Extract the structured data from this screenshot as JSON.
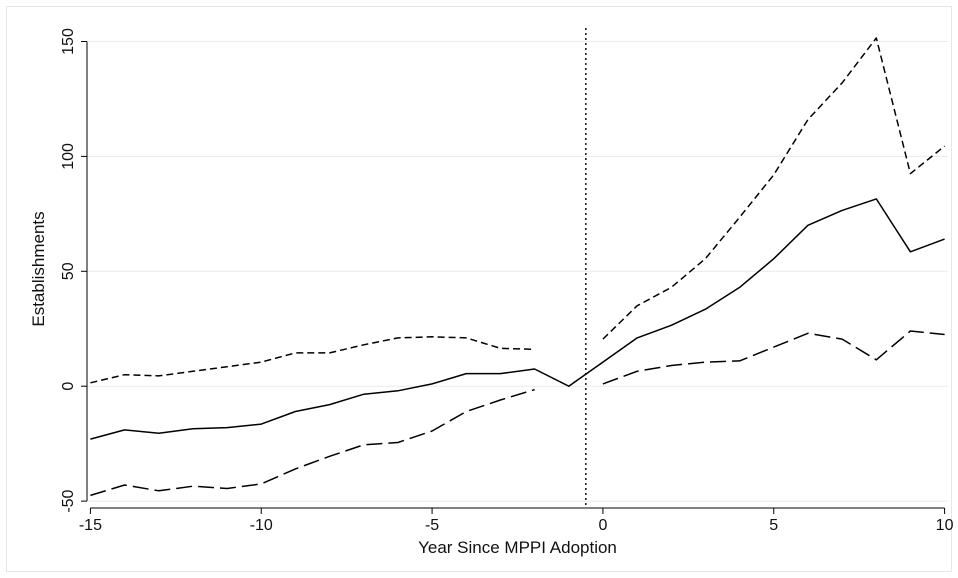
{
  "chart_data": {
    "type": "line",
    "title": "",
    "xlabel": "Year Since MPPI Adoption",
    "ylabel": "Establishments",
    "xlim": [
      -15.1,
      10.1
    ],
    "ylim": [
      -53,
      155
    ],
    "xticks": [
      -15,
      -10,
      -5,
      0,
      5,
      10
    ],
    "xtick_labels": [
      "-15",
      "-10",
      "-5",
      "0",
      "5",
      "10"
    ],
    "yticks": [
      -50,
      0,
      50,
      100,
      150
    ],
    "ytick_labels": [
      "-50",
      "0",
      "50",
      "100",
      "150"
    ],
    "grid": "horizontal",
    "legend": "none",
    "reference_line": {
      "x": -0.5,
      "style": "dotted"
    },
    "series": [
      {
        "style": "solid",
        "color": "#000000",
        "x": [
          -15,
          -14,
          -13,
          -12,
          -11,
          -10,
          -9,
          -8,
          -7,
          -6,
          -5,
          -4,
          -3,
          -2,
          -1,
          0,
          1,
          2,
          3,
          4,
          5,
          6,
          7,
          8,
          9,
          10
        ],
        "y": [
          -23,
          -19,
          -20.5,
          -18.5,
          -18,
          -16.5,
          -11,
          -8,
          -3.5,
          -2,
          1,
          5.5,
          5.5,
          7.5,
          0,
          10.5,
          21,
          26.5,
          33.5,
          43,
          55.5,
          70,
          76.5,
          81.5,
          58.5,
          64
        ]
      },
      {
        "style": "short-dash",
        "color": "#000000",
        "segments": [
          {
            "x": [
              -15,
              -14,
              -13,
              -12,
              -11,
              -10,
              -9,
              -8,
              -7,
              -6,
              -5,
              -4,
              -3,
              -2
            ],
            "y": [
              1.5,
              5,
              4.5,
              6.5,
              8.5,
              10.5,
              14.5,
              14.5,
              18,
              21,
              21.5,
              21,
              16.5,
              16
            ]
          },
          {
            "x": [
              0,
              1,
              2,
              3,
              4,
              5,
              6,
              7,
              8,
              9,
              10
            ],
            "y": [
              20.5,
              35,
              43,
              55.5,
              73.5,
              92,
              116,
              132,
              151.5,
              92.5,
              104.5
            ]
          }
        ]
      },
      {
        "style": "long-dash",
        "color": "#000000",
        "segments": [
          {
            "x": [
              -15,
              -14,
              -13,
              -12,
              -11,
              -10,
              -9,
              -8,
              -7,
              -6,
              -5,
              -4,
              -3,
              -2
            ],
            "y": [
              -47.5,
              -43,
              -45.5,
              -43.5,
              -44.5,
              -42.5,
              -36,
              -30.5,
              -25.5,
              -24.5,
              -19.5,
              -11,
              -6,
              -1.5
            ]
          },
          {
            "x": [
              0,
              1,
              2,
              3,
              4,
              5,
              6,
              7,
              8,
              9,
              10
            ],
            "y": [
              1,
              6.5,
              9,
              10.5,
              11,
              17,
              23,
              20.5,
              11.5,
              24,
              22.5
            ]
          }
        ]
      }
    ]
  }
}
